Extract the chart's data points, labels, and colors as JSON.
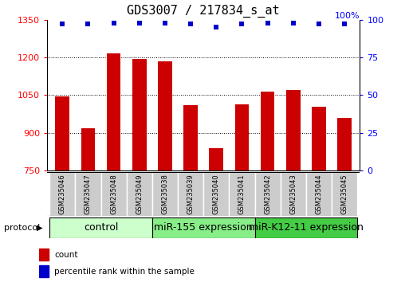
{
  "title": "GDS3007 / 217834_s_at",
  "samples": [
    "GSM235046",
    "GSM235047",
    "GSM235048",
    "GSM235049",
    "GSM235038",
    "GSM235039",
    "GSM235040",
    "GSM235041",
    "GSM235042",
    "GSM235043",
    "GSM235044",
    "GSM235045"
  ],
  "counts": [
    1045,
    920,
    1215,
    1195,
    1185,
    1010,
    840,
    1015,
    1065,
    1070,
    1005,
    960
  ],
  "percentile_ranks": [
    97,
    97,
    98,
    98,
    98,
    97,
    95,
    97,
    98,
    98,
    97,
    97
  ],
  "groups": [
    {
      "label": "control",
      "start": 0,
      "end": 4,
      "color": "#ccffcc"
    },
    {
      "label": "miR-155 expression",
      "start": 4,
      "end": 8,
      "color": "#88ee88"
    },
    {
      "label": "miR-K12-11 expression",
      "start": 8,
      "end": 12,
      "color": "#44cc44"
    }
  ],
  "bar_color": "#cc0000",
  "dot_color": "#0000cc",
  "ylim_left": [
    750,
    1350
  ],
  "ylim_right": [
    0,
    100
  ],
  "yticks_left": [
    750,
    900,
    1050,
    1200,
    1350
  ],
  "yticks_right": [
    0,
    25,
    50,
    75,
    100
  ],
  "right_axis_label": "100%",
  "background_color": "#ffffff",
  "plot_bg_color": "#ffffff",
  "title_fontsize": 11,
  "tick_fontsize": 8,
  "sample_fontsize": 6,
  "group_label_fontsize": 9,
  "legend_fontsize": 7.5,
  "protocol_label": "protocol",
  "legend_count": "count",
  "legend_pct": "percentile rank within the sample"
}
